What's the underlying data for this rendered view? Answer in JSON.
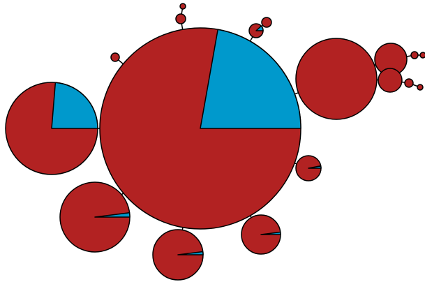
{
  "colors": {
    "primary": "#b22222",
    "secondary": "#0099cc",
    "outline": "#000000",
    "background": "#ffffff"
  },
  "nodes": [
    {
      "id": "root",
      "secondary_fraction": 0.222
    },
    {
      "id": "left-large",
      "secondary_fraction": 0.237
    },
    {
      "id": "right-large",
      "secondary_fraction": 0.0
    },
    {
      "id": "right-small-upper",
      "secondary_fraction": 0.0
    },
    {
      "id": "right-small-lower",
      "secondary_fraction": 0.0
    },
    {
      "id": "right-tiny-1",
      "secondary_fraction": 0.0
    },
    {
      "id": "right-tiny-2",
      "secondary_fraction": 0.0
    },
    {
      "id": "right-tiny-3",
      "secondary_fraction": 0.0
    },
    {
      "id": "right-tiny-4",
      "secondary_fraction": 0.0
    },
    {
      "id": "top-small",
      "secondary_fraction": 0.0
    },
    {
      "id": "top-tiny",
      "secondary_fraction": 0.0
    },
    {
      "id": "top-right-small",
      "secondary_fraction": 0.12
    },
    {
      "id": "top-right-tiny",
      "secondary_fraction": 0.0
    },
    {
      "id": "top-left-tiny",
      "secondary_fraction": 0.0
    },
    {
      "id": "bottom-left",
      "secondary_fraction": 0.02
    },
    {
      "id": "bottom-center",
      "secondary_fraction": 0.02
    },
    {
      "id": "bottom-right",
      "secondary_fraction": 0.02
    },
    {
      "id": "right-mid-small",
      "secondary_fraction": 0.03
    }
  ]
}
